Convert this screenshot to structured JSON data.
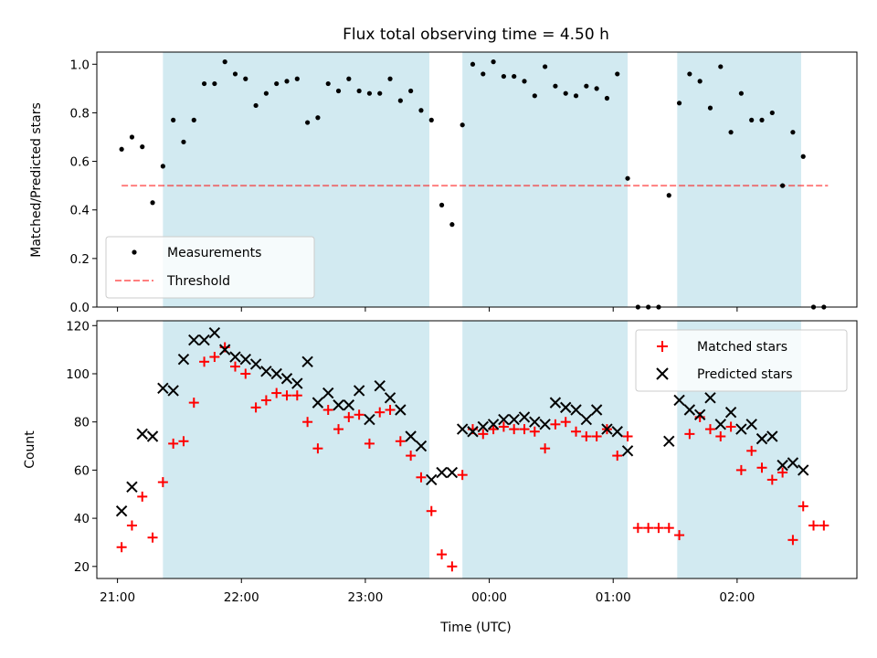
{
  "figure": {
    "title": "Flux total observing time = 4.50 h",
    "xlabel": "Time (UTC)"
  },
  "colors": {
    "band": "#add8e6",
    "measurement": "#000000",
    "threshold": "#ff0000",
    "matched": "#ff0000",
    "predicted": "#000000"
  },
  "chart_data": [
    {
      "type": "scatter",
      "panel": "top",
      "ylabel": "Matched/Predicted stars",
      "xlim": [
        "20:50",
        "02:58"
      ],
      "ylim": [
        0,
        1.05
      ],
      "grid": false,
      "legend_position": "lower-left",
      "xticks": [
        "21:00",
        "22:00",
        "23:00",
        "00:00",
        "01:00",
        "02:00"
      ],
      "yticks": [
        "0.0",
        "0.2",
        "0.4",
        "0.6",
        "0.8",
        "1.0"
      ],
      "observing_bands": [
        [
          "21:22",
          "23:31"
        ],
        [
          "23:47",
          "01:07"
        ],
        [
          "01:31",
          "02:31"
        ]
      ],
      "threshold": {
        "name": "Threshold",
        "value": 0.5,
        "x_range": [
          "21:02",
          "02:44"
        ]
      },
      "series": [
        {
          "name": "Measurements",
          "x": [
            "21:02",
            "21:07",
            "21:12",
            "21:17",
            "21:22",
            "21:27",
            "21:32",
            "21:37",
            "21:42",
            "21:47",
            "21:52",
            "21:57",
            "22:02",
            "22:07",
            "22:12",
            "22:17",
            "22:22",
            "22:27",
            "22:32",
            "22:37",
            "22:42",
            "22:47",
            "22:52",
            "22:57",
            "23:02",
            "23:07",
            "23:12",
            "23:17",
            "23:22",
            "23:27",
            "23:32",
            "23:37",
            "23:42",
            "23:47",
            "23:52",
            "23:57",
            "00:02",
            "00:07",
            "00:12",
            "00:17",
            "00:22",
            "00:27",
            "00:32",
            "00:37",
            "00:42",
            "00:47",
            "00:52",
            "00:57",
            "01:02",
            "01:07",
            "01:12",
            "01:17",
            "01:22",
            "01:27",
            "01:32",
            "01:37",
            "01:42",
            "01:47",
            "01:52",
            "01:57",
            "02:02",
            "02:07",
            "02:12",
            "02:17",
            "02:22",
            "02:27",
            "02:32",
            "02:37",
            "02:42"
          ],
          "y": [
            0.65,
            0.7,
            0.66,
            0.43,
            0.58,
            0.77,
            0.68,
            0.77,
            0.92,
            0.92,
            1.01,
            0.96,
            0.94,
            0.83,
            0.88,
            0.92,
            0.93,
            0.94,
            0.76,
            0.78,
            0.92,
            0.89,
            0.94,
            0.89,
            0.88,
            0.88,
            0.94,
            0.85,
            0.89,
            0.81,
            0.77,
            0.42,
            0.34,
            0.75,
            1.0,
            0.96,
            1.01,
            0.95,
            0.95,
            0.93,
            0.87,
            0.99,
            0.91,
            0.88,
            0.87,
            0.91,
            0.9,
            0.86,
            0.96,
            0.53,
            0.0,
            0.0,
            0.0,
            0.46,
            0.84,
            0.96,
            0.93,
            0.82,
            0.99,
            0.72,
            0.88,
            0.77,
            0.77,
            0.8,
            0.5,
            0.72,
            0.62,
            0.0,
            0.0
          ]
        }
      ]
    },
    {
      "type": "scatter",
      "panel": "bottom",
      "ylabel": "Count",
      "xlim": [
        "20:50",
        "02:58"
      ],
      "ylim": [
        15,
        122
      ],
      "grid": false,
      "legend_position": "upper-right",
      "xticks": [
        "21:00",
        "22:00",
        "23:00",
        "00:00",
        "01:00",
        "02:00"
      ],
      "yticks": [
        "20",
        "40",
        "60",
        "80",
        "100",
        "120"
      ],
      "observing_bands": [
        [
          "21:22",
          "23:31"
        ],
        [
          "23:47",
          "01:07"
        ],
        [
          "01:31",
          "02:31"
        ]
      ],
      "series": [
        {
          "name": "Matched stars",
          "marker": "plus",
          "x": [
            "21:02",
            "21:07",
            "21:12",
            "21:17",
            "21:22",
            "21:27",
            "21:32",
            "21:37",
            "21:42",
            "21:47",
            "21:52",
            "21:57",
            "22:02",
            "22:07",
            "22:12",
            "22:17",
            "22:22",
            "22:27",
            "22:32",
            "22:37",
            "22:42",
            "22:47",
            "22:52",
            "22:57",
            "23:02",
            "23:07",
            "23:12",
            "23:17",
            "23:22",
            "23:27",
            "23:32",
            "23:37",
            "23:42",
            "23:47",
            "23:52",
            "23:57",
            "00:02",
            "00:07",
            "00:12",
            "00:17",
            "00:22",
            "00:27",
            "00:32",
            "00:37",
            "00:42",
            "00:47",
            "00:52",
            "00:57",
            "01:02",
            "01:07",
            "01:12",
            "01:17",
            "01:22",
            "01:27",
            "01:32",
            "01:37",
            "01:42",
            "01:47",
            "01:52",
            "01:57",
            "02:02",
            "02:07",
            "02:12",
            "02:17",
            "02:22",
            "02:27",
            "02:32",
            "02:37",
            "02:42"
          ],
          "y": [
            28,
            37,
            49,
            32,
            55,
            71,
            72,
            88,
            105,
            107,
            111,
            103,
            100,
            86,
            89,
            92,
            91,
            91,
            80,
            69,
            85,
            77,
            82,
            83,
            71,
            84,
            85,
            72,
            66,
            57,
            43,
            25,
            20,
            58,
            77,
            75,
            77,
            78,
            77,
            77,
            76,
            69,
            79,
            80,
            76,
            74,
            74,
            77,
            66,
            74,
            36,
            36,
            36,
            36,
            33,
            75,
            82,
            77,
            74,
            78,
            60,
            68,
            61,
            56,
            59,
            31,
            45,
            37,
            37
          ]
        },
        {
          "name": "Predicted stars",
          "marker": "x",
          "x": [
            "21:02",
            "21:07",
            "21:12",
            "21:17",
            "21:22",
            "21:27",
            "21:32",
            "21:37",
            "21:42",
            "21:47",
            "21:52",
            "21:57",
            "22:02",
            "22:07",
            "22:12",
            "22:17",
            "22:22",
            "22:27",
            "22:32",
            "22:37",
            "22:42",
            "22:47",
            "22:52",
            "22:57",
            "23:02",
            "23:07",
            "23:12",
            "23:17",
            "23:22",
            "23:27",
            "23:32",
            "23:37",
            "23:42",
            "23:47",
            "23:52",
            "23:57",
            "00:02",
            "00:07",
            "00:12",
            "00:17",
            "00:22",
            "00:27",
            "00:32",
            "00:37",
            "00:42",
            "00:47",
            "00:52",
            "00:57",
            "01:02",
            "01:07",
            "01:27",
            "01:32",
            "01:37",
            "01:42",
            "01:47",
            "01:52",
            "01:57",
            "02:02",
            "02:07",
            "02:12",
            "02:17",
            "02:22",
            "02:27",
            "02:32"
          ],
          "y": [
            43,
            53,
            75,
            74,
            94,
            93,
            106,
            114,
            114,
            117,
            110,
            107,
            106,
            104,
            101,
            100,
            98,
            96,
            105,
            88,
            92,
            87,
            87,
            93,
            81,
            95,
            90,
            85,
            74,
            70,
            56,
            59,
            59,
            77,
            76,
            78,
            79,
            81,
            81,
            82,
            80,
            79,
            88,
            86,
            85,
            81,
            85,
            77,
            76,
            68,
            72,
            89,
            85,
            83,
            90,
            79,
            84,
            77,
            79,
            73,
            74,
            62,
            63,
            60
          ]
        }
      ]
    }
  ]
}
